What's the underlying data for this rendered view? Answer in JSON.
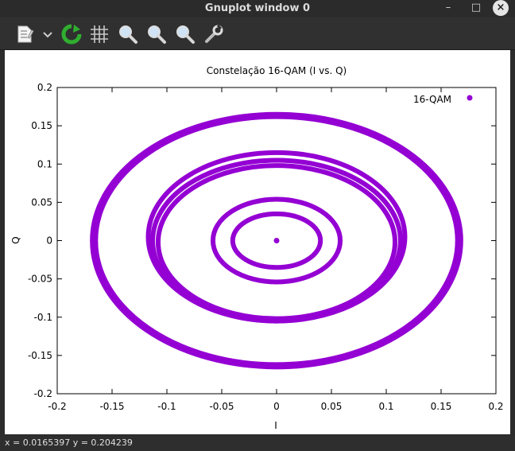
{
  "window": {
    "title": "Gnuplot window 0",
    "status": "x = 0.0165397 y = 0.204239"
  },
  "toolbar": {
    "icons": [
      "copy-icon",
      "dropdown-chevron-icon",
      "replot-icon",
      "grid-icon",
      "zoom-previous-icon",
      "zoom-next-icon",
      "autoscale-zoom-icon",
      "settings-wrench-icon"
    ]
  },
  "colors": {
    "series": "#9400d3"
  },
  "chart_data": {
    "type": "scatter",
    "title": "Constelação 16-QAM (I vs. Q)",
    "xlabel": "I",
    "ylabel": "Q",
    "xlim": [
      -0.2,
      0.2
    ],
    "ylim": [
      -0.2,
      0.2
    ],
    "xticks": [
      "-0.2",
      "-0.15",
      "-0.1",
      "-0.05",
      "0",
      "0.05",
      "0.1",
      "0.15",
      "0.2"
    ],
    "yticks": [
      "-0.2",
      "-0.15",
      "-0.1",
      "-0.05",
      "0",
      "0.05",
      "0.1",
      "0.15",
      "0.2"
    ],
    "legend": {
      "label": "16-QAM",
      "placement": "top-right"
    },
    "series": [
      {
        "name": "16-QAM",
        "rings": [
          {
            "cx": 0.0,
            "cy": 0.0,
            "rx": 0.168,
            "ry": 0.165
          },
          {
            "cx": 0.0,
            "cy": 0.0,
            "rx": 0.165,
            "ry": 0.162
          },
          {
            "cx": 0.0,
            "cy": 0.005,
            "rx": 0.117,
            "ry": 0.11
          },
          {
            "cx": 0.0,
            "cy": 0.0,
            "rx": 0.113,
            "ry": 0.105
          },
          {
            "cx": 0.0,
            "cy": -0.002,
            "rx": 0.108,
            "ry": 0.1
          },
          {
            "cx": 0.0,
            "cy": 0.0,
            "rx": 0.058,
            "ry": 0.054
          },
          {
            "cx": 0.0,
            "cy": 0.0,
            "rx": 0.04,
            "ry": 0.035
          }
        ],
        "center_point": [
          0.0,
          0.0
        ]
      }
    ]
  }
}
